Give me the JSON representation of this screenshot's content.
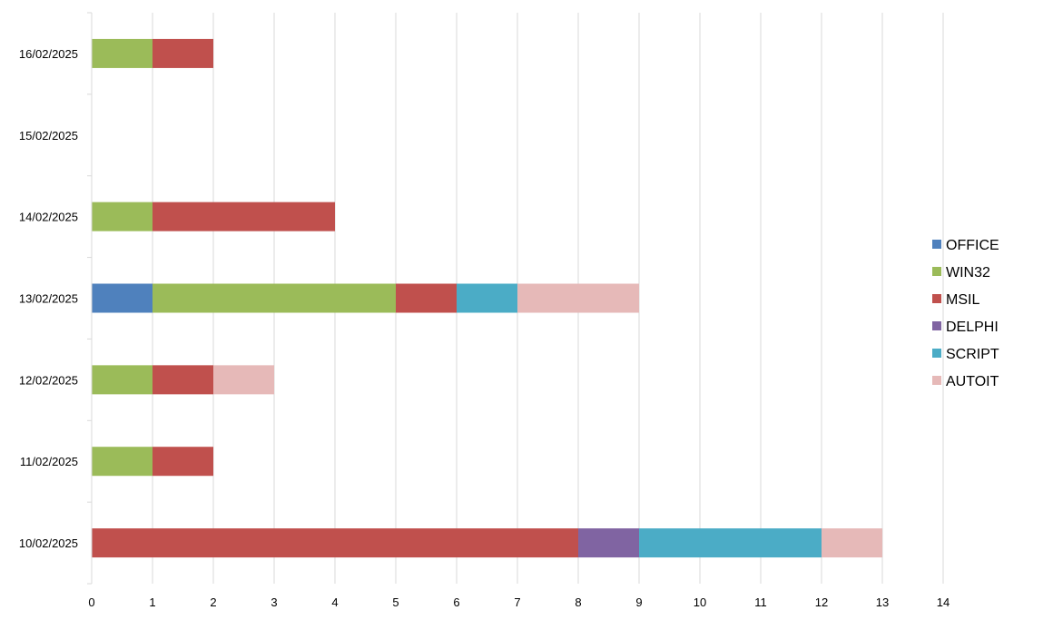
{
  "chart_data": {
    "type": "bar",
    "orientation": "horizontal",
    "stacked": true,
    "title": "",
    "xlabel": "",
    "ylabel": "",
    "xlim": [
      0,
      14
    ],
    "x_ticks": [
      0,
      1,
      2,
      3,
      4,
      5,
      6,
      7,
      8,
      9,
      10,
      11,
      12,
      13,
      14
    ],
    "grid": "vertical",
    "legend_position": "right",
    "categories": [
      "10/02/2025",
      "11/02/2025",
      "12/02/2025",
      "13/02/2025",
      "14/02/2025",
      "15/02/2025",
      "16/02/2025"
    ],
    "series": [
      {
        "name": "OFFICE",
        "color": "#4F81BD",
        "values": [
          0,
          0,
          0,
          1,
          0,
          0,
          0
        ]
      },
      {
        "name": "WIN32",
        "color": "#9BBB59",
        "values": [
          0,
          1,
          1,
          4,
          1,
          0,
          1
        ]
      },
      {
        "name": "MSIL",
        "color": "#C0504D",
        "values": [
          8,
          1,
          1,
          1,
          3,
          0,
          1
        ]
      },
      {
        "name": "DELPHI",
        "color": "#8064A2",
        "values": [
          1,
          0,
          0,
          0,
          0,
          0,
          0
        ]
      },
      {
        "name": "SCRIPT",
        "color": "#4BACC6",
        "values": [
          3,
          0,
          0,
          1,
          0,
          0,
          0
        ]
      },
      {
        "name": "AUTOIT",
        "color": "#E6B9B8",
        "values": [
          1,
          0,
          1,
          2,
          0,
          0,
          0
        ]
      }
    ]
  }
}
